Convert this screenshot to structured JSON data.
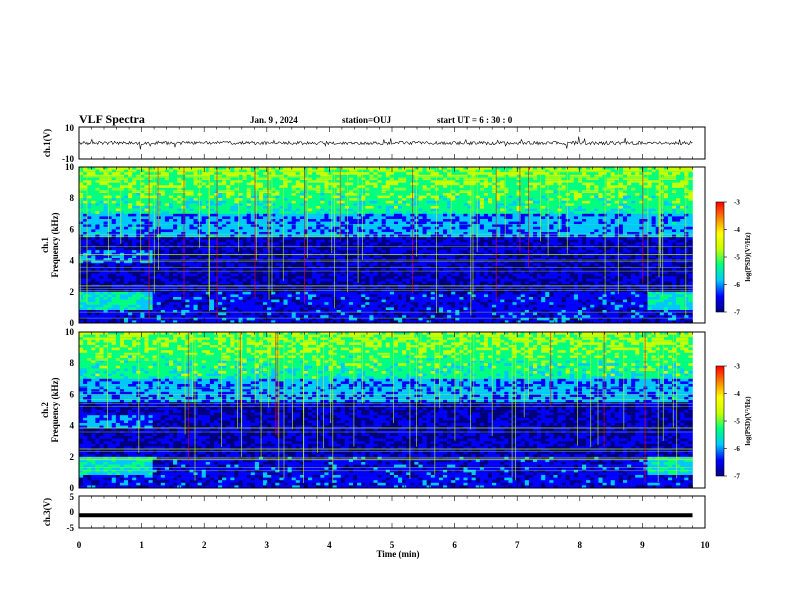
{
  "header": {
    "title": "VLF Spectra",
    "date": "Jan. 9 , 2024",
    "station": "station=OUJ",
    "start": "start UT = 6 : 30 : 0"
  },
  "colors": {
    "cmap": [
      "#00007f",
      "#0000ff",
      "#00c8ff",
      "#00ff80",
      "#c8ff00",
      "#ffff00",
      "#ff8000",
      "#ff0000",
      "#ffffff"
    ],
    "trace": "#000000"
  },
  "chart_data": [
    {
      "type": "line",
      "ylabel": "ch.1(V)",
      "ylim": [
        -10,
        10
      ],
      "yticks": [
        "10",
        "-10"
      ],
      "xlim": [
        0,
        10
      ]
    },
    {
      "type": "heatmap",
      "ylabel": "ch.1\nFrequency (kHz)",
      "xlim": [
        0,
        10
      ],
      "ylim": [
        0,
        10
      ],
      "yticks": [
        "0",
        "2",
        "4",
        "6",
        "8",
        "10"
      ],
      "data_end_min": 9.8,
      "colorbar": {
        "label": "log(PSD)(V²/Hz)",
        "range": [
          -7,
          -3
        ],
        "ticks": [
          "-3",
          "-4",
          "-5",
          "-6",
          "-7"
        ]
      }
    },
    {
      "type": "heatmap",
      "ylabel": "ch.2\nFrequency (kHz)",
      "xlim": [
        0,
        10
      ],
      "ylim": [
        0,
        10
      ],
      "yticks": [
        "0",
        "2",
        "4",
        "6",
        "8",
        "10"
      ],
      "data_end_min": 9.8,
      "colorbar": {
        "label": "log(PSD)(V²/Hz)",
        "range": [
          -7,
          -3
        ],
        "ticks": [
          "-3",
          "-4",
          "-5",
          "-6",
          "-7"
        ]
      }
    },
    {
      "type": "line",
      "ylabel": "ch.3(V)",
      "ylim": [
        -5,
        5
      ],
      "yticks": [
        "5",
        "0",
        "-5"
      ],
      "xlim": [
        0,
        10
      ],
      "level": -1
    }
  ],
  "xaxis": {
    "label": "Time (min)",
    "ticks": [
      "0",
      "1",
      "2",
      "3",
      "4",
      "5",
      "6",
      "7",
      "8",
      "9",
      "10"
    ]
  }
}
